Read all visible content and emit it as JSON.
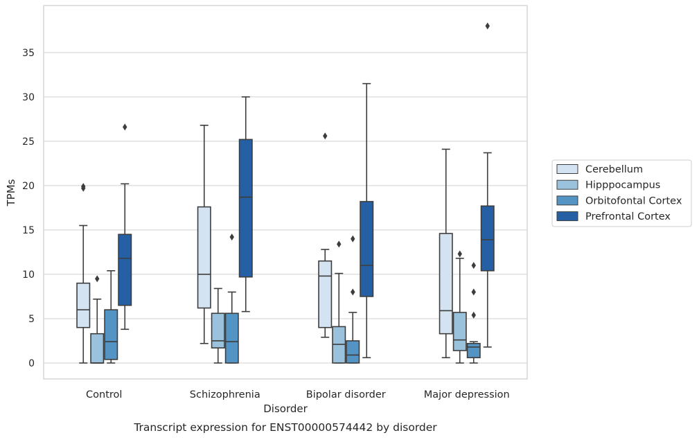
{
  "chart_data": {
    "type": "box",
    "title": "",
    "caption": "Transcript expression for ENST00000574442 by disorder",
    "xlabel": "Disorder",
    "ylabel": "TPMs",
    "ylim": [
      -1.8,
      40.3
    ],
    "yticks": [
      0,
      5,
      10,
      15,
      20,
      25,
      30,
      35
    ],
    "grid": "horizontal",
    "legend_position": "right",
    "categories": [
      "Control",
      "Schizophrenia",
      "Bipolar disorder",
      "Major depression"
    ],
    "series": [
      {
        "name": "Cerebellum",
        "color": "#d4e3f1",
        "boxes": [
          {
            "whislo": 0,
            "q1": 4.0,
            "med": 6.0,
            "q3": 9.0,
            "whishi": 15.5,
            "fliers": [
              19.7,
              19.9
            ]
          },
          {
            "whislo": 2.2,
            "q1": 6.2,
            "med": 10.0,
            "q3": 17.6,
            "whishi": 26.8,
            "fliers": []
          },
          {
            "whislo": 2.9,
            "q1": 4.0,
            "med": 9.8,
            "q3": 11.5,
            "whishi": 12.8,
            "fliers": [
              25.6
            ]
          },
          {
            "whislo": 0.6,
            "q1": 3.3,
            "med": 5.9,
            "q3": 14.6,
            "whishi": 24.1,
            "fliers": []
          }
        ]
      },
      {
        "name": "Hipppocampus",
        "color": "#9ac2dd",
        "boxes": [
          {
            "whislo": 0,
            "q1": 0,
            "med": 0,
            "q3": 3.3,
            "whishi": 7.2,
            "fliers": [
              9.5
            ]
          },
          {
            "whislo": 0,
            "q1": 1.7,
            "med": 2.5,
            "q3": 5.6,
            "whishi": 8.4,
            "fliers": []
          },
          {
            "whislo": 0,
            "q1": 0,
            "med": 2.1,
            "q3": 4.1,
            "whishi": 10.1,
            "fliers": [
              13.4
            ]
          },
          {
            "whislo": 0,
            "q1": 1.4,
            "med": 2.6,
            "q3": 5.7,
            "whishi": 11.8,
            "fliers": [
              12.3
            ]
          }
        ]
      },
      {
        "name": "Orbitofontal Cortex",
        "color": "#5394c4",
        "boxes": [
          {
            "whislo": 0,
            "q1": 0.4,
            "med": 2.4,
            "q3": 6.0,
            "whishi": 10.4,
            "fliers": []
          },
          {
            "whislo": 0,
            "q1": 0,
            "med": 2.4,
            "q3": 5.6,
            "whishi": 8.0,
            "fliers": [
              14.2
            ]
          },
          {
            "whislo": 0,
            "q1": 0,
            "med": 0.9,
            "q3": 2.5,
            "whishi": 5.7,
            "fliers": [
              8.0,
              14.0
            ]
          },
          {
            "whislo": 0,
            "q1": 0.6,
            "med": 1.8,
            "q3": 2.2,
            "whishi": 2.4,
            "fliers": [
              5.4,
              8.0,
              11.0
            ]
          }
        ]
      },
      {
        "name": "Prefrontal Cortex",
        "color": "#2460a3",
        "boxes": [
          {
            "whislo": 3.8,
            "q1": 6.5,
            "med": 11.8,
            "q3": 14.5,
            "whishi": 20.2,
            "fliers": [
              26.6
            ]
          },
          {
            "whislo": 5.8,
            "q1": 9.7,
            "med": 18.7,
            "q3": 25.2,
            "whishi": 30.0,
            "fliers": []
          },
          {
            "whislo": 0.6,
            "q1": 7.5,
            "med": 11.0,
            "q3": 18.2,
            "whishi": 31.5,
            "fliers": []
          },
          {
            "whislo": 1.8,
            "q1": 10.4,
            "med": 13.9,
            "q3": 17.7,
            "whishi": 23.7,
            "fliers": [
              38.0
            ]
          }
        ]
      }
    ]
  }
}
